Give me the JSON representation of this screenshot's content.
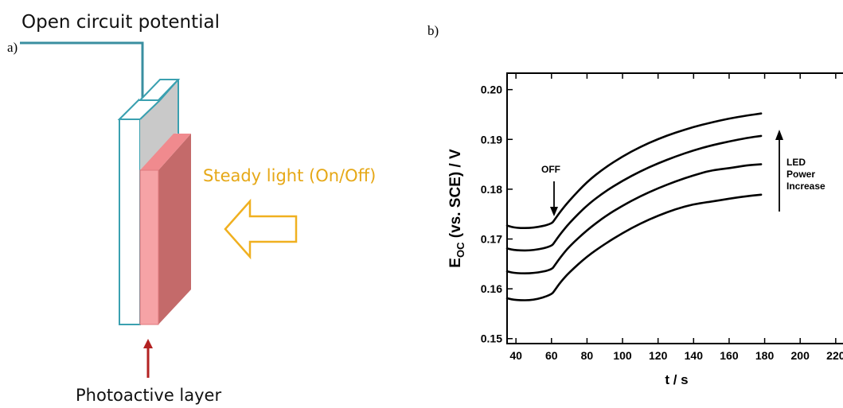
{
  "panel_a": {
    "label": "a)",
    "top_label": "Open circuit potential",
    "light_label": "Steady light (On/Off)",
    "bottom_label": "Photoactive layer",
    "colors": {
      "wire": "#3a8fa0",
      "electrode_stroke": "#3aa0b0",
      "electrode_fill": "#c9c9c9",
      "layer_front": "#f6a3a6",
      "layer_side": "#c46a6a",
      "layer_top": "#f08a8e",
      "light_arrow": "#f0b020",
      "light_text": "#e6a817",
      "marker_arrow": "#b32222"
    }
  },
  "panel_b": {
    "label": "b)",
    "annotations": {
      "off": "OFF",
      "led_line1": "LED",
      "led_line2": "Power",
      "led_line3": "Increase"
    }
  },
  "chart_data": {
    "type": "line",
    "xlabel": "t / s",
    "ylabel_main": "E",
    "ylabel_sub": "OC",
    "ylabel_rest": " (vs. SCE) / V",
    "xlim": [
      35,
      225
    ],
    "ylim": [
      0.149,
      0.2033
    ],
    "xticks": [
      40,
      60,
      80,
      100,
      120,
      140,
      160,
      180,
      200,
      220
    ],
    "yticks": [
      0.15,
      0.16,
      0.17,
      0.18,
      0.19,
      0.2
    ],
    "ytick_labels": [
      "0.15",
      "0.16",
      "0.17",
      "0.18",
      "0.19",
      "0.20"
    ],
    "grid": false,
    "series": [
      {
        "x": [
          35,
          40,
          50,
          60,
          62,
          65,
          70,
          80,
          90,
          100,
          110,
          120,
          130,
          140,
          150,
          160,
          170,
          178
        ],
        "y": [
          0.1727,
          0.1722,
          0.1722,
          0.173,
          0.174,
          0.1755,
          0.1777,
          0.1815,
          0.1843,
          0.1866,
          0.1885,
          0.1901,
          0.1914,
          0.1925,
          0.1934,
          0.1942,
          0.1948,
          0.1952
        ]
      },
      {
        "x": [
          35,
          40,
          50,
          60,
          62,
          65,
          70,
          80,
          90,
          100,
          110,
          120,
          130,
          140,
          150,
          160,
          170,
          178
        ],
        "y": [
          0.1681,
          0.1677,
          0.1677,
          0.1685,
          0.1695,
          0.171,
          0.1732,
          0.1768,
          0.1795,
          0.1817,
          0.1836,
          0.1852,
          0.1866,
          0.1878,
          0.1888,
          0.1896,
          0.1903,
          0.1907
        ]
      },
      {
        "x": [
          35,
          40,
          50,
          60,
          62,
          65,
          70,
          80,
          90,
          100,
          110,
          120,
          130,
          140,
          150,
          160,
          170,
          178
        ],
        "y": [
          0.1635,
          0.1631,
          0.1631,
          0.1638,
          0.1648,
          0.1663,
          0.1685,
          0.1718,
          0.1745,
          0.1767,
          0.1786,
          0.1802,
          0.1816,
          0.1828,
          0.1838,
          0.1842,
          0.1848,
          0.185
        ]
      },
      {
        "x": [
          35,
          40,
          50,
          60,
          62,
          65,
          70,
          80,
          90,
          100,
          110,
          120,
          130,
          140,
          150,
          160,
          170,
          178
        ],
        "y": [
          0.1581,
          0.1577,
          0.1577,
          0.1588,
          0.1598,
          0.1613,
          0.1633,
          0.1665,
          0.169,
          0.1712,
          0.1731,
          0.1747,
          0.176,
          0.177,
          0.1775,
          0.1781,
          0.1786,
          0.1789
        ]
      }
    ]
  }
}
